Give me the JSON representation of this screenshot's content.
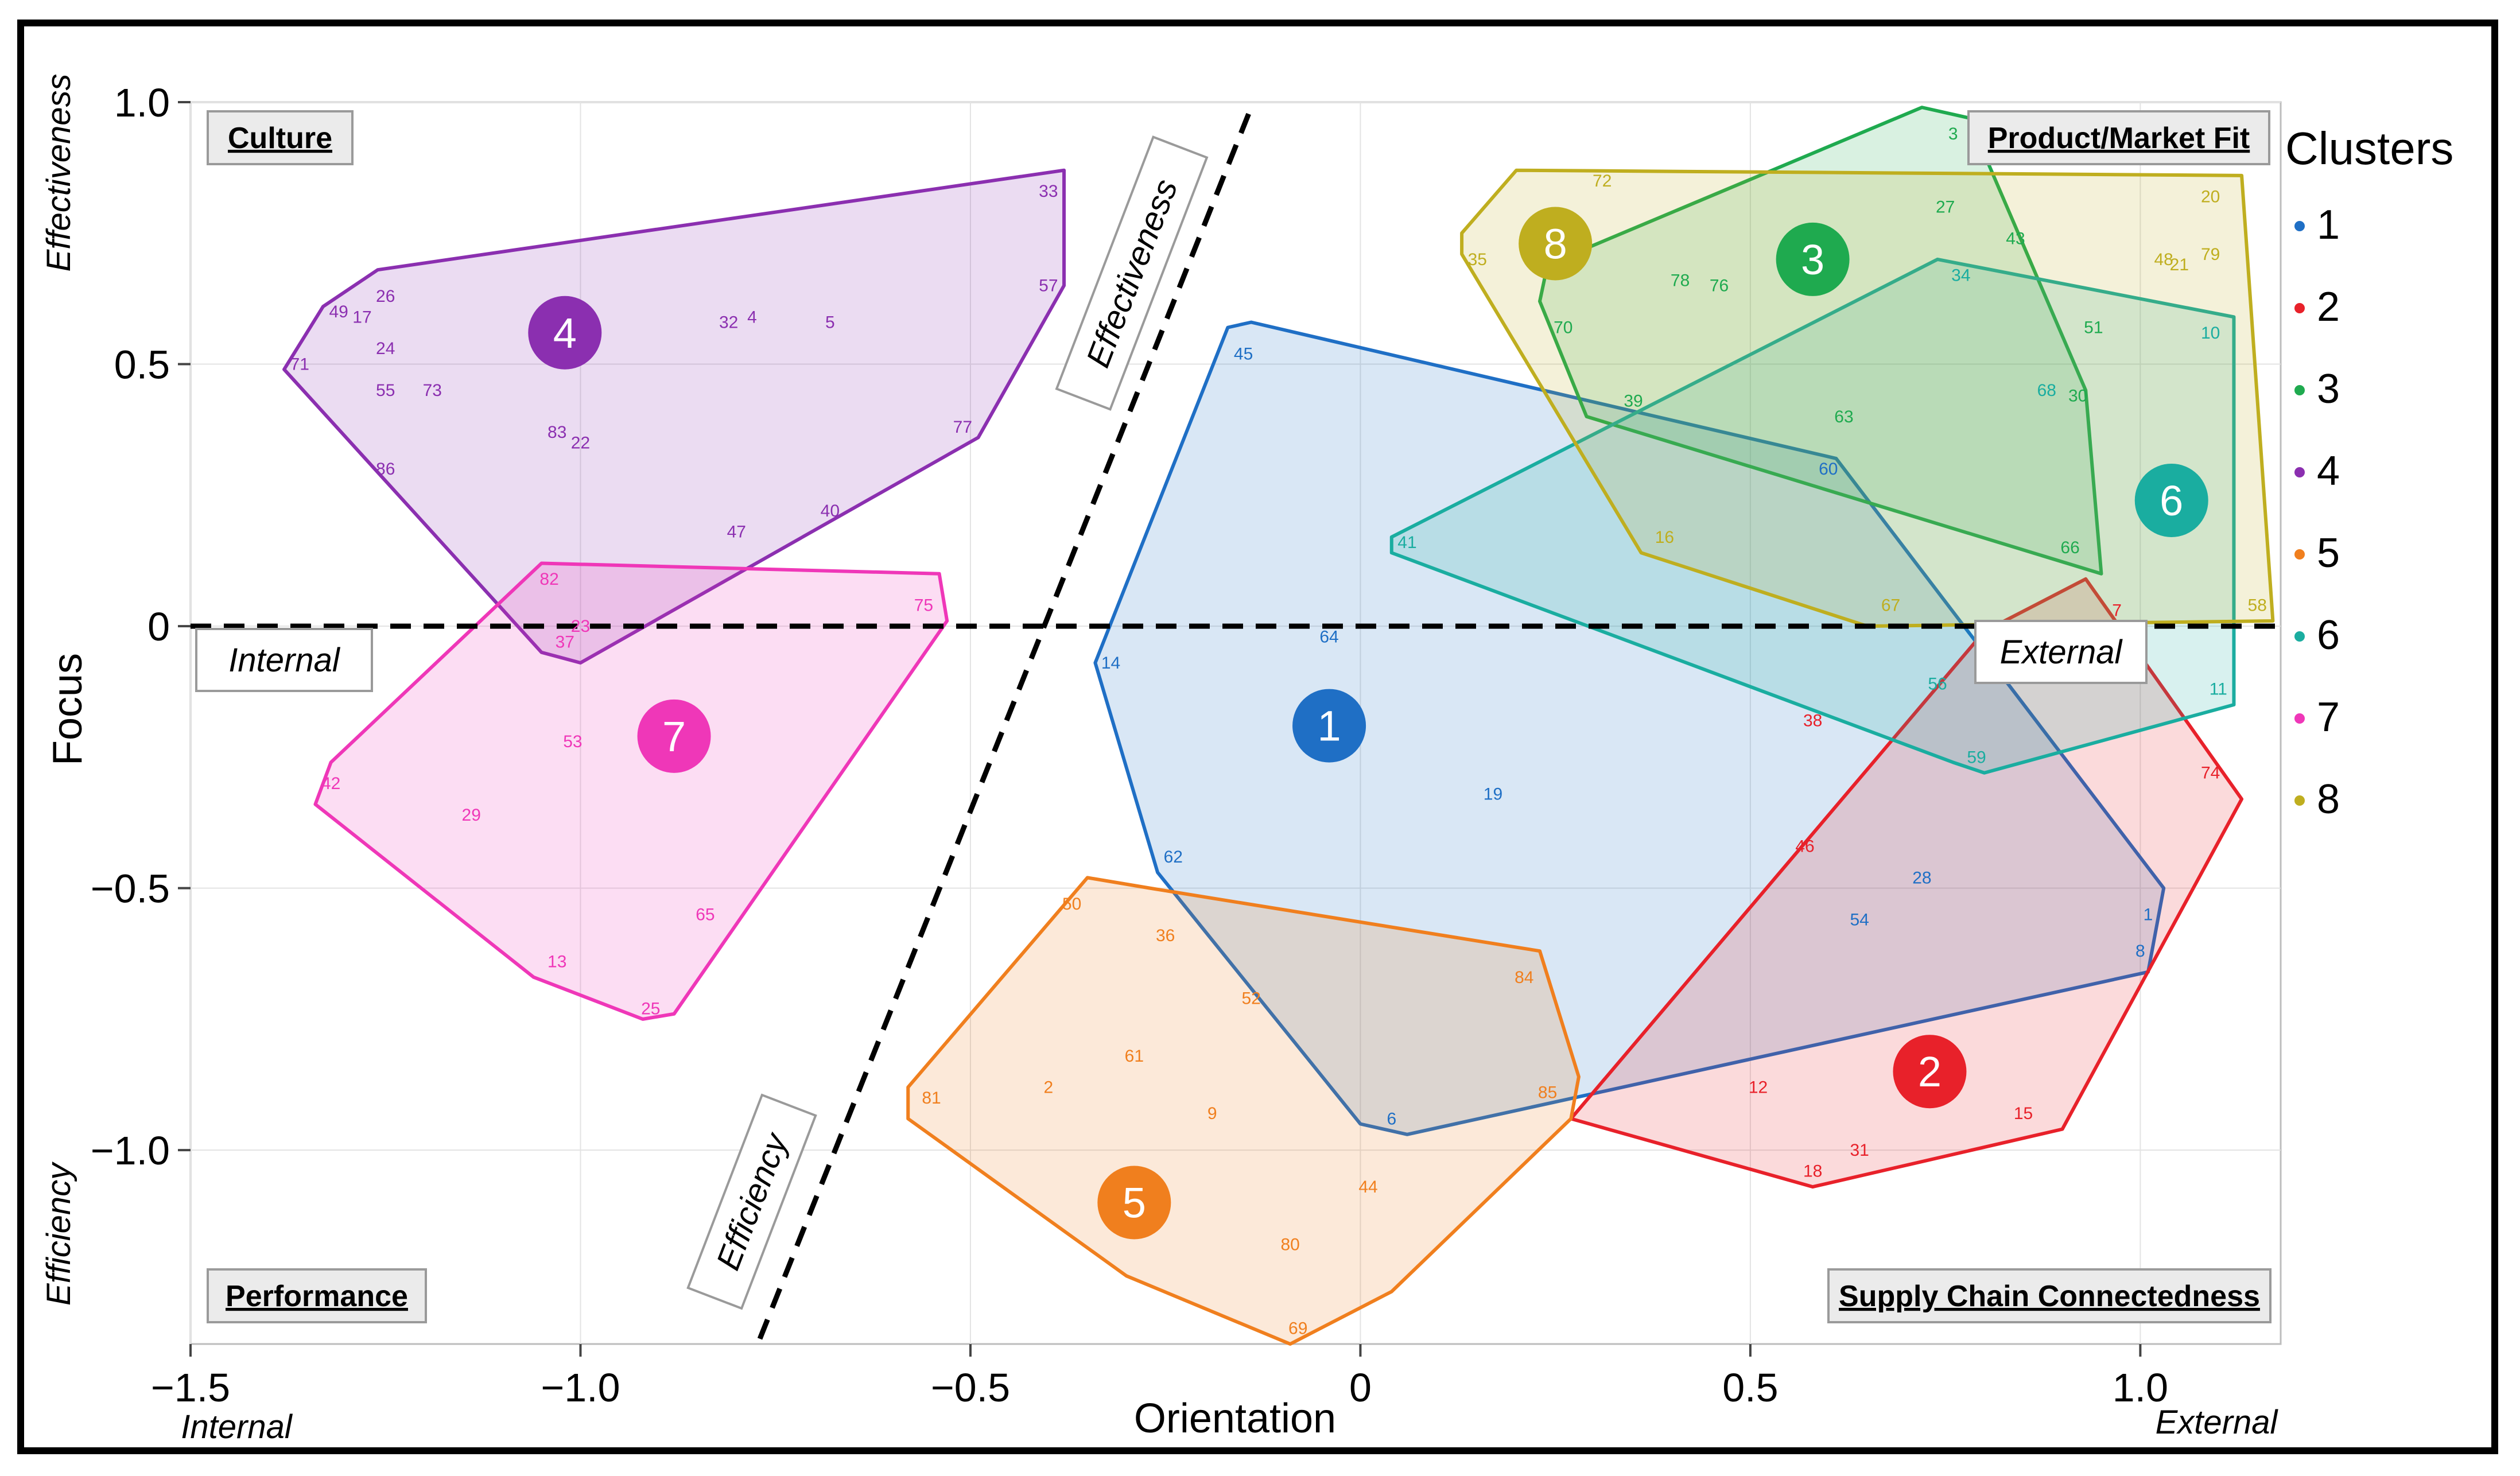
{
  "chart_data": {
    "type": "scatter",
    "title": "",
    "xlabel": "Orientation",
    "ylabel": "Focus",
    "xlim": [
      -1.5,
      1.18
    ],
    "ylim": [
      -1.37,
      1.0
    ],
    "x_ticks": [
      -1.5,
      -1.0,
      -0.5,
      0,
      0.5,
      1.0
    ],
    "x_tick_labels": [
      "−1.5",
      "−1.0",
      "−0.5",
      "0",
      "0.5",
      "1.0"
    ],
    "y_ticks": [
      1.0,
      0.5,
      0,
      -0.5,
      -1.0
    ],
    "y_tick_labels": [
      "1.0",
      "0.5",
      "0",
      "−0.5",
      "−1.0"
    ],
    "x_end_labels": {
      "left": "Internal",
      "right": "External"
    },
    "y_end_labels": {
      "top": "Effectiveness",
      "bottom": "Efficiency"
    },
    "quadrants": [
      "Culture",
      "Product/Market Fit",
      "Performance",
      "Supply Chain Connectedness"
    ],
    "axis_annotations": {
      "left": "Internal",
      "right": "External",
      "diag_top": "Effectiveness",
      "diag_bottom": "Efficiency"
    },
    "dividers": {
      "horizontal_y": 0,
      "diagonal": [
        [
          -0.77,
          -1.36
        ],
        [
          -0.14,
          0.99
        ]
      ]
    },
    "legend": {
      "title": "Clusters",
      "position": "right"
    },
    "clusters": [
      {
        "name": "1",
        "color": "#1f6fc5",
        "hull": [
          [
            -0.17,
            0.57
          ],
          [
            -0.14,
            0.58
          ],
          [
            0.61,
            0.32
          ],
          [
            1.03,
            -0.5
          ],
          [
            1.01,
            -0.66
          ],
          [
            0.06,
            -0.97
          ],
          [
            0,
            -0.95
          ],
          [
            -0.26,
            -0.47
          ],
          [
            -0.34,
            -0.07
          ]
        ],
        "centroid": [
          -0.04,
          -0.19
        ],
        "points": [
          [
            45,
            -0.15,
            0.52
          ],
          [
            60,
            0.6,
            0.3
          ],
          [
            64,
            -0.04,
            -0.02
          ],
          [
            14,
            -0.32,
            -0.07
          ],
          [
            19,
            0.17,
            -0.32
          ],
          [
            62,
            -0.24,
            -0.44
          ],
          [
            28,
            0.72,
            -0.48
          ],
          [
            54,
            0.64,
            -0.56
          ],
          [
            1,
            1.01,
            -0.55
          ],
          [
            8,
            1.0,
            -0.62
          ],
          [
            6,
            0.04,
            -0.94
          ]
        ]
      },
      {
        "name": "2",
        "color": "#e8212a",
        "hull": [
          [
            0.93,
            0.09
          ],
          [
            1.13,
            -0.33
          ],
          [
            0.9,
            -0.96
          ],
          [
            0.58,
            -1.07
          ],
          [
            0.27,
            -0.94
          ],
          [
            0.8,
            -0.01
          ]
        ],
        "centroid": [
          0.73,
          -0.85
        ],
        "points": [
          [
            7,
            0.97,
            0.03
          ],
          [
            38,
            0.58,
            -0.18
          ],
          [
            74,
            1.09,
            -0.28
          ],
          [
            46,
            0.57,
            -0.42
          ],
          [
            12,
            0.51,
            -0.88
          ],
          [
            15,
            0.85,
            -0.93
          ],
          [
            31,
            0.64,
            -1.0
          ],
          [
            18,
            0.58,
            -1.04
          ]
        ]
      },
      {
        "name": "3",
        "color": "#1faa4f",
        "hull": [
          [
            0.72,
            0.99
          ],
          [
            0.78,
            0.97
          ],
          [
            0.93,
            0.45
          ],
          [
            0.95,
            0.1
          ],
          [
            0.29,
            0.4
          ],
          [
            0.23,
            0.62
          ],
          [
            0.24,
            0.69
          ]
        ],
        "centroid": [
          0.58,
          0.7
        ],
        "points": [
          [
            3,
            0.76,
            0.94
          ],
          [
            27,
            0.75,
            0.8
          ],
          [
            43,
            0.84,
            0.74
          ],
          [
            78,
            0.41,
            0.66
          ],
          [
            76,
            0.46,
            0.65
          ],
          [
            70,
            0.26,
            0.57
          ],
          [
            39,
            0.35,
            0.43
          ],
          [
            63,
            0.62,
            0.4
          ],
          [
            51,
            0.94,
            0.57
          ],
          [
            30,
            0.92,
            0.44
          ],
          [
            66,
            0.91,
            0.15
          ]
        ]
      },
      {
        "name": "4",
        "color": "#8b2fb0",
        "hull": [
          [
            -1.33,
            0.61
          ],
          [
            -1.26,
            0.68
          ],
          [
            -0.38,
            0.87
          ],
          [
            -0.38,
            0.65
          ],
          [
            -0.49,
            0.36
          ],
          [
            -1.0,
            -0.07
          ],
          [
            -1.05,
            -0.05
          ],
          [
            -1.38,
            0.49
          ]
        ],
        "centroid": [
          -1.02,
          0.56
        ],
        "points": [
          [
            49,
            -1.31,
            0.6
          ],
          [
            17,
            -1.28,
            0.59
          ],
          [
            26,
            -1.25,
            0.63
          ],
          [
            71,
            -1.36,
            0.5
          ],
          [
            24,
            -1.25,
            0.53
          ],
          [
            55,
            -1.25,
            0.45
          ],
          [
            73,
            -1.19,
            0.45
          ],
          [
            86,
            -1.25,
            0.3
          ],
          [
            83,
            -1.03,
            0.37
          ],
          [
            22,
            -1.0,
            0.35
          ],
          [
            32,
            -0.81,
            0.58
          ],
          [
            4,
            -0.78,
            0.59
          ],
          [
            5,
            -0.68,
            0.58
          ],
          [
            33,
            -0.4,
            0.83
          ],
          [
            57,
            -0.4,
            0.65
          ],
          [
            77,
            -0.51,
            0.38
          ],
          [
            47,
            -0.8,
            0.18
          ],
          [
            40,
            -0.68,
            0.22
          ]
        ]
      },
      {
        "name": "5",
        "color": "#f07f1e",
        "hull": [
          [
            -0.35,
            -0.48
          ],
          [
            -0.27,
            -0.5
          ],
          [
            0.23,
            -0.62
          ],
          [
            0.28,
            -0.86
          ],
          [
            0.27,
            -0.94
          ],
          [
            0.04,
            -1.27
          ],
          [
            -0.09,
            -1.37
          ],
          [
            -0.3,
            -1.24
          ],
          [
            -0.58,
            -0.94
          ],
          [
            -0.58,
            -0.88
          ]
        ],
        "centroid": [
          -0.29,
          -1.1
        ],
        "points": [
          [
            50,
            -0.37,
            -0.53
          ],
          [
            36,
            -0.25,
            -0.59
          ],
          [
            52,
            -0.14,
            -0.71
          ],
          [
            84,
            0.21,
            -0.67
          ],
          [
            61,
            -0.29,
            -0.82
          ],
          [
            2,
            -0.4,
            -0.88
          ],
          [
            81,
            -0.55,
            -0.9
          ],
          [
            9,
            -0.19,
            -0.93
          ],
          [
            85,
            0.24,
            -0.89
          ],
          [
            44,
            0.01,
            -1.07
          ],
          [
            80,
            -0.09,
            -1.18
          ],
          [
            69,
            -0.08,
            -1.34
          ]
        ]
      },
      {
        "name": "6",
        "color": "#1aada0",
        "hull": [
          [
            0.74,
            0.7
          ],
          [
            1.12,
            0.59
          ],
          [
            1.12,
            -0.15
          ],
          [
            0.8,
            -0.28
          ],
          [
            0.76,
            -0.26
          ],
          [
            0.04,
            0.14
          ],
          [
            0.04,
            0.17
          ]
        ],
        "centroid": [
          1.04,
          0.24
        ],
        "points": [
          [
            34,
            0.77,
            0.67
          ],
          [
            10,
            1.09,
            0.56
          ],
          [
            68,
            0.88,
            0.45
          ],
          [
            41,
            0.06,
            0.16
          ],
          [
            56,
            0.74,
            -0.11
          ],
          [
            59,
            0.79,
            -0.25
          ],
          [
            11,
            1.1,
            -0.12
          ]
        ]
      },
      {
        "name": "7",
        "color": "#ef37b8",
        "hull": [
          [
            -1.05,
            0.12
          ],
          [
            -0.54,
            0.1
          ],
          [
            -0.53,
            0.01
          ],
          [
            -0.88,
            -0.74
          ],
          [
            -0.92,
            -0.75
          ],
          [
            -1.06,
            -0.67
          ],
          [
            -1.34,
            -0.34
          ],
          [
            -1.32,
            -0.26
          ]
        ],
        "centroid": [
          -0.88,
          -0.21
        ],
        "points": [
          [
            82,
            -1.04,
            0.09
          ],
          [
            75,
            -0.56,
            0.04
          ],
          [
            23,
            -1.0,
            0.0
          ],
          [
            37,
            -1.02,
            -0.03
          ],
          [
            53,
            -1.01,
            -0.22
          ],
          [
            42,
            -1.32,
            -0.3
          ],
          [
            29,
            -1.14,
            -0.36
          ],
          [
            65,
            -0.84,
            -0.55
          ],
          [
            13,
            -1.03,
            -0.64
          ],
          [
            25,
            -0.91,
            -0.73
          ]
        ]
      },
      {
        "name": "8",
        "color": "#bfae1f",
        "hull": [
          [
            0.2,
            0.87
          ],
          [
            1.13,
            0.86
          ],
          [
            1.17,
            0.01
          ],
          [
            0.65,
            0.0
          ],
          [
            0.36,
            0.14
          ],
          [
            0.13,
            0.71
          ],
          [
            0.13,
            0.75
          ]
        ],
        "centroid": [
          0.25,
          0.73
        ],
        "points": [
          [
            72,
            0.31,
            0.85
          ],
          [
            20,
            1.09,
            0.82
          ],
          [
            48,
            1.03,
            0.7
          ],
          [
            21,
            1.05,
            0.69
          ],
          [
            79,
            1.09,
            0.71
          ],
          [
            35,
            0.15,
            0.7
          ],
          [
            16,
            0.39,
            0.17
          ],
          [
            67,
            0.68,
            0.04
          ],
          [
            58,
            1.15,
            0.04
          ]
        ]
      }
    ]
  }
}
